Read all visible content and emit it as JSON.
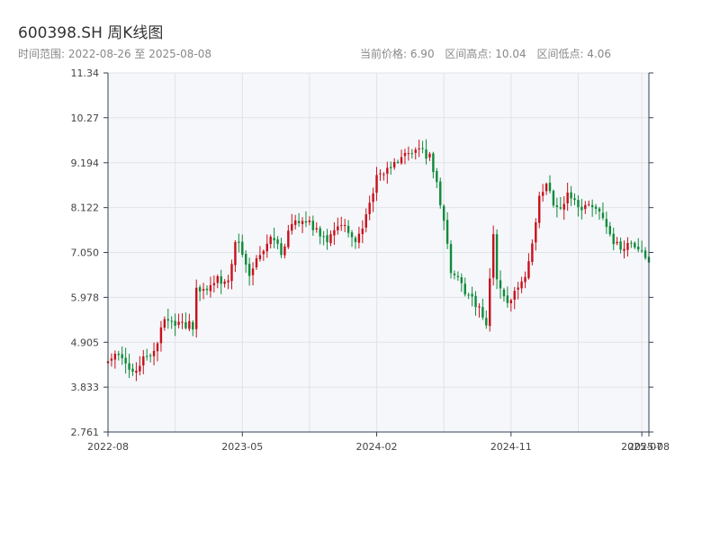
{
  "header": {
    "title": "600398.SH 周K线图",
    "subtitle": "时间范围: 2022-08-26 至 2025-08-08",
    "current_price": "当前价格: 6.90",
    "range_high": "区间高点: 10.04",
    "range_low": "区间低点: 4.06"
  },
  "colors": {
    "up": "#c8101c",
    "down": "#0f8a3a",
    "plot_bg": "#f5f7fa",
    "grid": "#e0e3e8",
    "axis": "#334155",
    "text": "#444444"
  },
  "chart_data": {
    "type": "candlestick",
    "title": "600398.SH 周K线图",
    "ylim": [
      2.761,
      11.34
    ],
    "y_ticks": [
      "2.761",
      "3.833",
      "4.905",
      "5.978",
      "7.050",
      "8.122",
      "9.194",
      "10.27",
      "11.34"
    ],
    "x_ticks": [
      {
        "label": "2022-08",
        "week": 0
      },
      {
        "label": "2023-05",
        "week": 38
      },
      {
        "label": "2024-02",
        "week": 76
      },
      {
        "label": "2024-11",
        "week": 114
      },
      {
        "label": "2025-07",
        "week": 151
      },
      {
        "label": "2025-08",
        "week": 153
      }
    ],
    "weeks": 154,
    "anchors": [
      [
        0,
        4.52
      ],
      [
        3,
        4.56
      ],
      [
        5,
        4.3
      ],
      [
        8,
        4.28
      ],
      [
        11,
        4.55
      ],
      [
        13,
        4.75
      ],
      [
        16,
        5.45
      ],
      [
        19,
        5.3
      ],
      [
        22,
        5.35
      ],
      [
        24,
        5.3
      ],
      [
        25,
        6.2
      ],
      [
        28,
        6.18
      ],
      [
        31,
        6.4
      ],
      [
        34,
        6.3
      ],
      [
        36,
        7.4
      ],
      [
        38,
        6.95
      ],
      [
        40,
        6.5
      ],
      [
        43,
        7.0
      ],
      [
        46,
        7.5
      ],
      [
        49,
        7.1
      ],
      [
        52,
        7.7
      ],
      [
        56,
        7.8
      ],
      [
        59,
        7.6
      ],
      [
        62,
        7.4
      ],
      [
        65,
        7.7
      ],
      [
        68,
        7.6
      ],
      [
        70,
        7.4
      ],
      [
        72,
        7.6
      ],
      [
        74,
        8.2
      ],
      [
        76,
        8.8
      ],
      [
        79,
        9.0
      ],
      [
        82,
        9.3
      ],
      [
        85,
        9.4
      ],
      [
        88,
        9.5
      ],
      [
        91,
        9.3
      ],
      [
        93,
        8.7
      ],
      [
        95,
        7.7
      ],
      [
        97,
        6.6
      ],
      [
        99,
        6.4
      ],
      [
        102,
        6.0
      ],
      [
        105,
        5.7
      ],
      [
        107,
        5.35
      ],
      [
        109,
        7.4
      ],
      [
        110,
        6.3
      ],
      [
        113,
        5.9
      ],
      [
        116,
        6.2
      ],
      [
        118,
        6.4
      ],
      [
        120,
        7.3
      ],
      [
        122,
        8.4
      ],
      [
        124,
        8.6
      ],
      [
        127,
        8.1
      ],
      [
        130,
        8.4
      ],
      [
        133,
        8.1
      ],
      [
        136,
        8.3
      ],
      [
        139,
        8.0
      ],
      [
        142,
        7.4
      ],
      [
        145,
        7.2
      ],
      [
        148,
        7.2
      ],
      [
        151,
        7.0
      ],
      [
        153,
        6.9
      ]
    ]
  }
}
